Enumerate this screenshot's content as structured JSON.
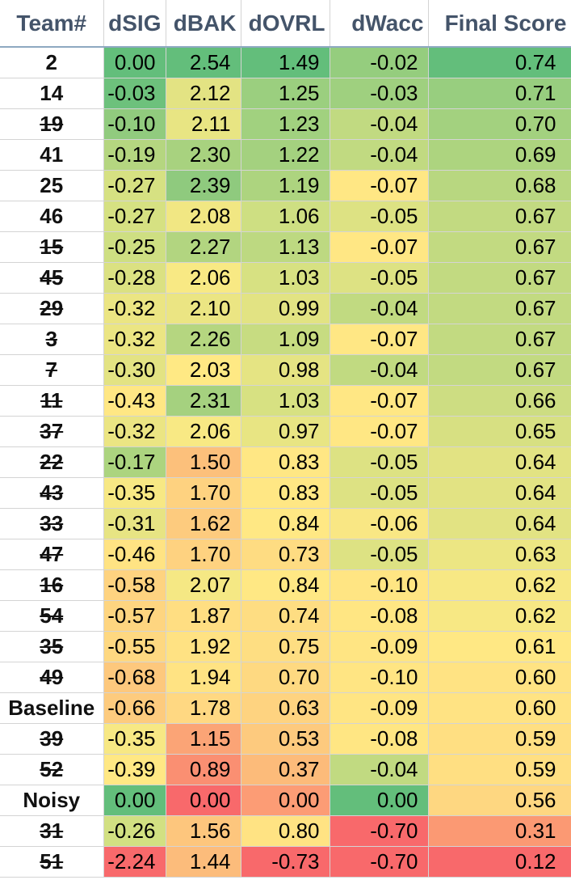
{
  "headers": [
    "Team#",
    "dSIG",
    "dBAK",
    "dOVRL",
    "dWacc",
    "Final Score"
  ],
  "rows": [
    {
      "team": "2",
      "strike": false,
      "values": [
        "0.00",
        "2.54",
        "1.49",
        "-0.02",
        "0.74"
      ],
      "colors": [
        "#63be7b",
        "#63be7b",
        "#63be7b",
        "#95cd7e",
        "#63be7b"
      ]
    },
    {
      "team": "14",
      "strike": false,
      "values": [
        "-0.03",
        "2.12",
        "1.25",
        "-0.03",
        "0.71"
      ],
      "colors": [
        "#6dc17c",
        "#e3e383",
        "#9bcf7f",
        "#9fd07f",
        "#98ce7f"
      ]
    },
    {
      "team": "19",
      "strike": true,
      "values": [
        "-0.10",
        "2.11",
        "1.23",
        "-0.04",
        "0.70"
      ],
      "colors": [
        "#91cb7e",
        "#e8e583",
        "#a1d17f",
        "#c1da81",
        "#a3d17f"
      ]
    },
    {
      "team": "41",
      "strike": false,
      "values": [
        "-0.19",
        "2.30",
        "1.22",
        "-0.04",
        "0.69"
      ],
      "colors": [
        "#b5d680",
        "#a8d27f",
        "#a4d17f",
        "#c1da81",
        "#add47f"
      ]
    },
    {
      "team": "25",
      "strike": false,
      "values": [
        "-0.27",
        "2.39",
        "1.19",
        "-0.07",
        "0.68"
      ],
      "colors": [
        "#d6e182",
        "#8fca7e",
        "#add47f",
        "#ffe784",
        "#b8d780"
      ]
    },
    {
      "team": "46",
      "strike": false,
      "values": [
        "-0.27",
        "2.08",
        "1.06",
        "-0.05",
        "0.67"
      ],
      "colors": [
        "#d6e182",
        "#f1e783",
        "#cedf82",
        "#dde283",
        "#c2da81"
      ]
    },
    {
      "team": "15",
      "strike": true,
      "values": [
        "-0.25",
        "2.27",
        "1.13",
        "-0.07",
        "0.67"
      ],
      "colors": [
        "#cedf82",
        "#b2d580",
        "#bdd981",
        "#ffe784",
        "#c2da81"
      ]
    },
    {
      "team": "45",
      "strike": true,
      "values": [
        "-0.28",
        "2.06",
        "1.03",
        "-0.05",
        "0.67"
      ],
      "colors": [
        "#dbe182",
        "#f8e984",
        "#d7e182",
        "#dde283",
        "#c2da81"
      ]
    },
    {
      "team": "29",
      "strike": true,
      "values": [
        "-0.32",
        "2.10",
        "0.99",
        "-0.04",
        "0.67"
      ],
      "colors": [
        "#ebe583",
        "#ebe583",
        "#e2e383",
        "#c1da81",
        "#c2da81"
      ]
    },
    {
      "team": "3",
      "strike": true,
      "values": [
        "-0.32",
        "2.26",
        "1.09",
        "-0.07",
        "0.67"
      ],
      "colors": [
        "#ebe583",
        "#b5d680",
        "#c7dc81",
        "#ffe784",
        "#c2da81"
      ]
    },
    {
      "team": "7",
      "strike": true,
      "values": [
        "-0.30",
        "2.03",
        "0.98",
        "-0.04",
        "0.67"
      ],
      "colors": [
        "#e3e383",
        "#ffe984",
        "#e5e483",
        "#c1da81",
        "#c2da81"
      ]
    },
    {
      "team": "11",
      "strike": true,
      "values": [
        "-0.43",
        "2.31",
        "1.03",
        "-0.07",
        "0.66"
      ],
      "colors": [
        "#ffe784",
        "#a5d17f",
        "#d7e182",
        "#ffe784",
        "#cddd82"
      ]
    },
    {
      "team": "37",
      "strike": true,
      "values": [
        "-0.32",
        "2.06",
        "0.97",
        "-0.07",
        "0.65"
      ],
      "colors": [
        "#ebe583",
        "#f8e984",
        "#e8e583",
        "#ffe784",
        "#d7e082"
      ]
    },
    {
      "team": "22",
      "strike": true,
      "values": [
        "-0.17",
        "1.50",
        "0.83",
        "-0.05",
        "0.64"
      ],
      "colors": [
        "#acd47f",
        "#fcc07b",
        "#ffe784",
        "#dde283",
        "#e2e383"
      ]
    },
    {
      "team": "43",
      "strike": true,
      "values": [
        "-0.35",
        "1.70",
        "0.83",
        "-0.05",
        "0.64"
      ],
      "colors": [
        "#f7e884",
        "#fed280",
        "#ffe784",
        "#dde283",
        "#e2e383"
      ]
    },
    {
      "team": "33",
      "strike": true,
      "values": [
        "-0.31",
        "1.62",
        "0.84",
        "-0.06",
        "0.64"
      ],
      "colors": [
        "#e7e483",
        "#fdcb7e",
        "#ffe884",
        "#f9e784",
        "#e2e383"
      ]
    },
    {
      "team": "47",
      "strike": true,
      "values": [
        "-0.46",
        "1.70",
        "0.73",
        "-0.05",
        "0.63"
      ],
      "colors": [
        "#ffe383",
        "#fed280",
        "#fedc82",
        "#dde283",
        "#ece683"
      ]
    },
    {
      "team": "16",
      "strike": true,
      "values": [
        "-0.58",
        "2.07",
        "0.84",
        "-0.10",
        "0.62"
      ],
      "colors": [
        "#fed380",
        "#f5e884",
        "#ffe884",
        "#ffe583",
        "#f7e884"
      ]
    },
    {
      "team": "54",
      "strike": true,
      "values": [
        "-0.57",
        "1.87",
        "0.74",
        "-0.08",
        "0.62"
      ],
      "colors": [
        "#fed580",
        "#ffde82",
        "#fedd82",
        "#ffe683",
        "#f7e884"
      ]
    },
    {
      "team": "35",
      "strike": true,
      "values": [
        "-0.55",
        "1.92",
        "0.75",
        "-0.09",
        "0.61"
      ],
      "colors": [
        "#fed881",
        "#ffe283",
        "#fede82",
        "#ffe583",
        "#ffe884"
      ]
    },
    {
      "team": "49",
      "strike": true,
      "values": [
        "-0.68",
        "1.94",
        "0.70",
        "-0.10",
        "0.60"
      ],
      "colors": [
        "#fdc87d",
        "#ffe383",
        "#fed981",
        "#ffe583",
        "#ffe383"
      ]
    },
    {
      "team": "Baseline",
      "strike": false,
      "values": [
        "-0.66",
        "1.78",
        "0.63",
        "-0.09",
        "0.60"
      ],
      "colors": [
        "#fdcb7e",
        "#ffd882",
        "#fed380",
        "#ffe583",
        "#ffe383"
      ]
    },
    {
      "team": "39",
      "strike": true,
      "values": [
        "-0.35",
        "1.15",
        "0.53",
        "-0.08",
        "0.59"
      ],
      "colors": [
        "#f7e884",
        "#fba476",
        "#fdca7e",
        "#ffe683",
        "#ffdf82"
      ]
    },
    {
      "team": "52",
      "strike": true,
      "values": [
        "-0.39",
        "0.89",
        "0.37",
        "-0.04",
        "0.59"
      ],
      "colors": [
        "#ffe884",
        "#fa8f72",
        "#fcbb7a",
        "#c1da81",
        "#ffdf82"
      ]
    },
    {
      "team": "Noisy",
      "strike": false,
      "values": [
        "0.00",
        "0.00",
        "0.00",
        "0.00",
        "0.56"
      ],
      "colors": [
        "#63be7b",
        "#f8696b",
        "#fc9c75",
        "#63be7b",
        "#fed781"
      ]
    },
    {
      "team": "31",
      "strike": true,
      "values": [
        "-0.26",
        "1.56",
        "0.80",
        "-0.70",
        "0.31"
      ],
      "colors": [
        "#d2e082",
        "#fdc67d",
        "#ffe383",
        "#f8696b",
        "#fb9973"
      ]
    },
    {
      "team": "51",
      "strike": true,
      "values": [
        "-2.24",
        "1.44",
        "-0.73",
        "-0.70",
        "0.12"
      ],
      "colors": [
        "#f8696b",
        "#fcbc7b",
        "#f8696b",
        "#f8696b",
        "#f8696b"
      ]
    }
  ]
}
